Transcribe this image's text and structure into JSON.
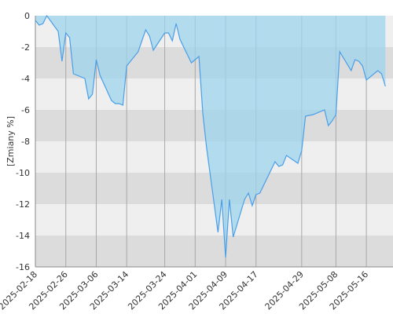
{
  "chart_data": {
    "type": "area",
    "title": "",
    "xlabel": "",
    "ylabel": "[Zmiany %]",
    "ylim": [
      -16,
      0
    ],
    "yticks": [
      0,
      -2,
      -4,
      -6,
      -8,
      -10,
      -12,
      -14,
      -16
    ],
    "xlim": [
      "2025-02-18",
      "2025-05-23"
    ],
    "xticks": [
      "2025-02-18",
      "2025-02-26",
      "2025-03-06",
      "2025-03-14",
      "2025-03-24",
      "2025-04-01",
      "2025-04-09",
      "2025-04-17",
      "2025-04-29",
      "2025-05-08",
      "2025-05-16"
    ],
    "grid": true,
    "colors": {
      "line": "#4a9fe8",
      "fill": "#9ed4ee",
      "band_light": "#efefef",
      "band_dark": "#dcdcdc",
      "gridline": "#a8a8a8"
    },
    "series": [
      {
        "values": [
          [
            "2025-02-18",
            -0.3
          ],
          [
            "2025-02-19",
            -0.6
          ],
          [
            "2025-02-20",
            -0.5
          ],
          [
            "2025-02-21",
            0.0
          ],
          [
            "2025-02-24",
            -1.0
          ],
          [
            "2025-02-25",
            -2.9
          ],
          [
            "2025-02-26",
            -1.1
          ],
          [
            "2025-02-27",
            -1.4
          ],
          [
            "2025-02-28",
            -3.7
          ],
          [
            "2025-03-03",
            -4.0
          ],
          [
            "2025-03-04",
            -5.3
          ],
          [
            "2025-03-05",
            -5.0
          ],
          [
            "2025-03-06",
            -2.8
          ],
          [
            "2025-03-07",
            -3.8
          ],
          [
            "2025-03-10",
            -5.4
          ],
          [
            "2025-03-11",
            -5.6
          ],
          [
            "2025-03-12",
            -5.6
          ],
          [
            "2025-03-13",
            -5.7
          ],
          [
            "2025-03-14",
            -3.2
          ],
          [
            "2025-03-17",
            -2.3
          ],
          [
            "2025-03-18",
            -1.6
          ],
          [
            "2025-03-19",
            -0.9
          ],
          [
            "2025-03-20",
            -1.3
          ],
          [
            "2025-03-21",
            -2.2
          ],
          [
            "2025-03-24",
            -1.1
          ],
          [
            "2025-03-25",
            -1.1
          ],
          [
            "2025-03-26",
            -1.6
          ],
          [
            "2025-03-27",
            -0.5
          ],
          [
            "2025-03-28",
            -1.5
          ],
          [
            "2025-03-31",
            -3.0
          ],
          [
            "2025-04-01",
            -2.8
          ],
          [
            "2025-04-02",
            -2.6
          ],
          [
            "2025-04-03",
            -6.2
          ],
          [
            "2025-04-04",
            -8.4
          ],
          [
            "2025-04-07",
            -13.8
          ],
          [
            "2025-04-08",
            -11.7
          ],
          [
            "2025-04-09",
            -15.4
          ],
          [
            "2025-04-10",
            -11.7
          ],
          [
            "2025-04-11",
            -14.1
          ],
          [
            "2025-04-14",
            -11.7
          ],
          [
            "2025-04-15",
            -11.3
          ],
          [
            "2025-04-16",
            -12.1
          ],
          [
            "2025-04-17",
            -11.4
          ],
          [
            "2025-04-18",
            -11.3
          ],
          [
            "2025-04-22",
            -9.3
          ],
          [
            "2025-04-23",
            -9.6
          ],
          [
            "2025-04-24",
            -9.5
          ],
          [
            "2025-04-25",
            -8.9
          ],
          [
            "2025-04-28",
            -9.4
          ],
          [
            "2025-04-29",
            -8.6
          ],
          [
            "2025-04-30",
            -6.4
          ],
          [
            "2025-05-02",
            -6.3
          ],
          [
            "2025-05-05",
            -6.0
          ],
          [
            "2025-05-06",
            -7.0
          ],
          [
            "2025-05-07",
            -6.7
          ],
          [
            "2025-05-08",
            -6.3
          ],
          [
            "2025-05-09",
            -2.3
          ],
          [
            "2025-05-12",
            -3.5
          ],
          [
            "2025-05-13",
            -2.8
          ],
          [
            "2025-05-14",
            -2.9
          ],
          [
            "2025-05-15",
            -3.2
          ],
          [
            "2025-05-16",
            -4.1
          ],
          [
            "2025-05-19",
            -3.5
          ],
          [
            "2025-05-20",
            -3.7
          ],
          [
            "2025-05-21",
            -4.5
          ]
        ]
      }
    ]
  }
}
